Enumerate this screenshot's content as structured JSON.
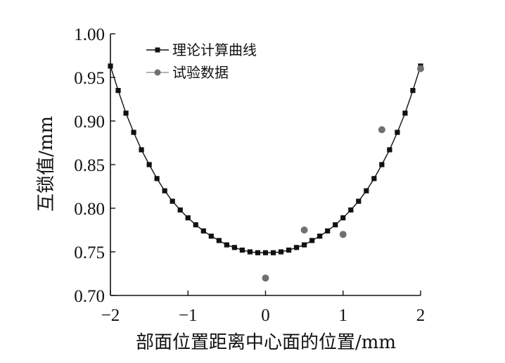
{
  "chart_data": {
    "type": "scatter",
    "xlabel": "部面位置距离中心面的位置/mm",
    "ylabel": "互锁值/mm",
    "xlim": [
      -2,
      2
    ],
    "ylim": [
      0.7,
      1.0
    ],
    "x_ticks": [
      -2,
      -1,
      0,
      1,
      2
    ],
    "x_tick_labels": [
      "−2",
      "−1",
      "0",
      "1",
      "2"
    ],
    "y_ticks": [
      0.7,
      0.75,
      0.8,
      0.85,
      0.9,
      0.95,
      1.0
    ],
    "y_tick_labels": [
      "0.70",
      "0.75",
      "0.80",
      "0.85",
      "0.90",
      "0.95",
      "1.00"
    ],
    "grid": false,
    "legend_position": "top-left",
    "series": [
      {
        "name": "理论计算曲线",
        "style": "line-square-markers",
        "color": "#111111",
        "x": [
          -2.0,
          -1.9,
          -1.8,
          -1.7,
          -1.6,
          -1.5,
          -1.4,
          -1.3,
          -1.2,
          -1.1,
          -1.0,
          -0.9,
          -0.8,
          -0.7,
          -0.6,
          -0.5,
          -0.4,
          -0.3,
          -0.2,
          -0.1,
          0.0,
          0.1,
          0.2,
          0.3,
          0.4,
          0.5,
          0.6,
          0.7,
          0.8,
          0.9,
          1.0,
          1.1,
          1.2,
          1.3,
          1.4,
          1.5,
          1.6,
          1.7,
          1.8,
          1.9,
          2.0
        ],
        "y": [
          0.963,
          0.935,
          0.909,
          0.887,
          0.867,
          0.85,
          0.834,
          0.82,
          0.808,
          0.798,
          0.789,
          0.781,
          0.774,
          0.768,
          0.763,
          0.758,
          0.755,
          0.752,
          0.75,
          0.749,
          0.749,
          0.749,
          0.75,
          0.752,
          0.755,
          0.758,
          0.763,
          0.768,
          0.774,
          0.781,
          0.789,
          0.798,
          0.808,
          0.82,
          0.834,
          0.85,
          0.867,
          0.887,
          0.909,
          0.935,
          0.963
        ]
      },
      {
        "name": "试验数据",
        "style": "circle-markers",
        "color": "#707070",
        "x": [
          0.0,
          0.5,
          1.0,
          1.5,
          2.0
        ],
        "y": [
          0.72,
          0.775,
          0.77,
          0.89,
          0.96
        ]
      }
    ]
  }
}
